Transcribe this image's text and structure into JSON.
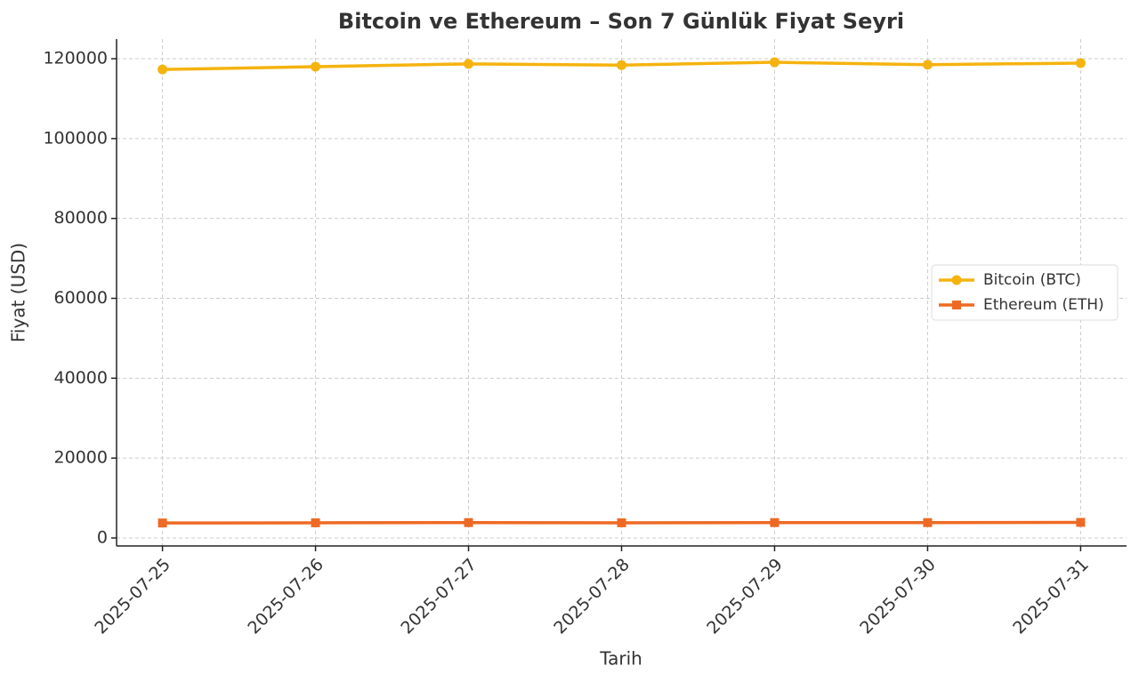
{
  "chart_data": {
    "type": "line",
    "title": "Bitcoin ve Ethereum – Son 7 Günlük Fiyat Seyri",
    "x_label": "Tarih",
    "y_label": "Fiyat (USD)",
    "categories": [
      "2025-07-25",
      "2025-07-26",
      "2025-07-27",
      "2025-07-28",
      "2025-07-29",
      "2025-07-30",
      "2025-07-31"
    ],
    "series": [
      {
        "name": "Bitcoin (BTC)",
        "color": "#f5b30f",
        "marker": "circle",
        "values": [
          117300,
          118000,
          118700,
          118400,
          119100,
          118500,
          118900
        ]
      },
      {
        "name": "Ethereum (ETH)",
        "color": "#ee6a24",
        "marker": "square",
        "values": [
          3750,
          3800,
          3850,
          3800,
          3850,
          3850,
          3900
        ]
      }
    ],
    "ylim": [
      -2000,
      124900
    ],
    "yticks": [
      0,
      20000,
      40000,
      60000,
      80000,
      100000,
      120000
    ],
    "grid": true,
    "legend": "center right"
  }
}
